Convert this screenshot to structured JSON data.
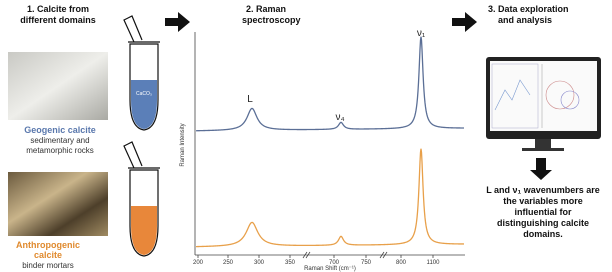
{
  "step1": {
    "title": [
      "1. Calcite from",
      "different domains"
    ],
    "tube_label": "CaCO₃",
    "geogenic": {
      "name": "Geogenic calcite",
      "desc": [
        "sedimentary and",
        "metamorphic rocks"
      ]
    },
    "anthropogenic": {
      "name": [
        "Anthropogenic",
        "calcite"
      ],
      "desc": "binder mortars"
    }
  },
  "step2": {
    "title": [
      "2. Raman",
      "spectroscopy"
    ],
    "peaks": [
      "L",
      "ν₄",
      "ν₁"
    ],
    "y_label": "Raman Intensity",
    "x_label": "Raman Shift (cm⁻¹)",
    "x_ticks": [
      200,
      250,
      300,
      350,
      700,
      750,
      800,
      1100
    ]
  },
  "step3": {
    "title": [
      "3. Data exploration",
      "and analysis"
    ],
    "conclusion": [
      "L and ν₁ wavenumbers are",
      "the variables more",
      "influential for",
      "distinguishing calcite",
      "domains."
    ]
  }
}
